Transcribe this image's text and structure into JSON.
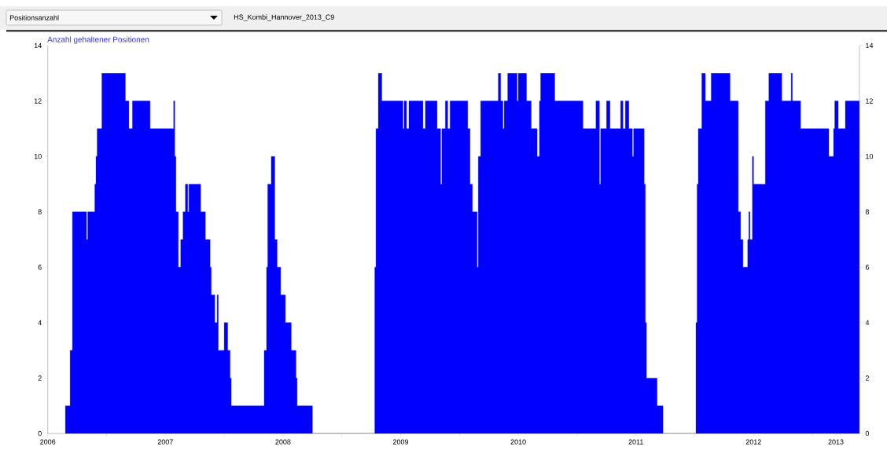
{
  "chart_data": {
    "type": "area",
    "title": "Anzahl gehaltener Positionen",
    "annotations": [
      "Positionsanzahl",
      "HS_Kombi_Hannover_2013_C9"
    ],
    "color": "#0000ff",
    "x": [
      2006.65,
      2006.65,
      2006.69,
      2006.69,
      2006.71,
      2006.71,
      2006.83,
      2006.83,
      2006.84,
      2006.84,
      2006.9,
      2006.9,
      2006.91,
      2006.91,
      2006.92,
      2006.92,
      2006.96,
      2006.96,
      2007.16,
      2007.16,
      2007.19,
      2007.19,
      2007.22,
      2007.22,
      2007.37,
      2007.37,
      2007.57,
      2007.57,
      2007.58,
      2007.58,
      2007.59,
      2007.59,
      2007.61,
      2007.61,
      2007.63,
      2007.63,
      2007.65,
      2007.65,
      2007.67,
      2007.67,
      2007.69,
      2007.69,
      2007.7,
      2007.7,
      2007.8,
      2007.8,
      2007.84,
      2007.84,
      2007.88,
      2007.88,
      2007.89,
      2007.89,
      2007.92,
      2007.92,
      2007.94,
      2007.94,
      2007.95,
      2007.95,
      2008.0,
      2008.0,
      2008.03,
      2008.03,
      2008.05,
      2008.05,
      2008.06,
      2008.06,
      2008.34,
      2008.34,
      2008.36,
      2008.36,
      2008.37,
      2008.37,
      2008.4,
      2008.4,
      2008.43,
      2008.43,
      2008.45,
      2008.45,
      2008.48,
      2008.48,
      2008.52,
      2008.52,
      2008.57,
      2008.57,
      2008.61,
      2008.61,
      2008.62,
      2008.62,
      2008.75,
      2008.75,
      2009.28,
      2009.28,
      2009.29,
      2009.29,
      2009.31,
      2009.31,
      2009.34,
      2009.34,
      2009.52,
      2009.52,
      2009.53,
      2009.53,
      2009.55,
      2009.55,
      2009.57,
      2009.57,
      2009.69,
      2009.69,
      2009.71,
      2009.71,
      2009.81,
      2009.81,
      2009.84,
      2009.84,
      2009.85,
      2009.85,
      2009.88,
      2009.88,
      2009.9,
      2009.9,
      2009.92,
      2009.92,
      2010.07,
      2010.07,
      2010.09,
      2010.09,
      2010.11,
      2010.11,
      2010.15,
      2010.15,
      2010.16,
      2010.16,
      2010.18,
      2010.18,
      2010.33,
      2010.33,
      2010.35,
      2010.35,
      2010.37,
      2010.37,
      2010.38,
      2010.38,
      2010.41,
      2010.41,
      2010.49,
      2010.49,
      2010.5,
      2010.5,
      2010.57,
      2010.57,
      2010.61,
      2010.61,
      2010.66,
      2010.66,
      2010.68,
      2010.68,
      2010.69,
      2010.69,
      2010.81,
      2010.81,
      2011.05,
      2011.05,
      2011.16,
      2011.16,
      2011.19,
      2011.19,
      2011.2,
      2011.2,
      2011.25,
      2011.25,
      2011.28,
      2011.28,
      2011.37,
      2011.37,
      2011.39,
      2011.39,
      2011.41,
      2011.41,
      2011.44,
      2011.44,
      2011.47,
      2011.47,
      2011.48,
      2011.48,
      2011.57,
      2011.57,
      2011.58,
      2011.58,
      2011.59,
      2011.59,
      2011.68,
      2011.68,
      2011.73,
      2011.73,
      2012.01,
      2012.01,
      2012.02,
      2012.02,
      2012.03,
      2012.03,
      2012.06,
      2012.06,
      2012.09,
      2012.09,
      2012.14,
      2012.14,
      2012.3,
      2012.3,
      2012.37,
      2012.37,
      2012.39,
      2012.39,
      2012.41,
      2012.41,
      2012.45,
      2012.45,
      2012.46,
      2012.46,
      2012.47,
      2012.47,
      2012.49,
      2012.49,
      2012.5,
      2012.5,
      2012.6,
      2012.6,
      2012.63,
      2012.63,
      2012.74,
      2012.74,
      2012.82,
      2012.82,
      2012.83,
      2012.83,
      2012.9,
      2012.9,
      2013.14,
      2013.14,
      2013.18,
      2013.18,
      2013.19,
      2013.19,
      2013.22,
      2013.22,
      2013.28,
      2013.28,
      2013.4
    ],
    "values": [
      0,
      1,
      1,
      3,
      3,
      8,
      8,
      7,
      7,
      8,
      8,
      9,
      9,
      10,
      10,
      11,
      11,
      13,
      13,
      12,
      12,
      11,
      11,
      12,
      12,
      11,
      11,
      12,
      12,
      10,
      10,
      8,
      8,
      6,
      6,
      7,
      7,
      8,
      8,
      9,
      9,
      8,
      8,
      9,
      9,
      8,
      8,
      7,
      7,
      6,
      6,
      5,
      5,
      4,
      4,
      5,
      5,
      3,
      3,
      4,
      4,
      3,
      3,
      2,
      2,
      1,
      1,
      3,
      3,
      6,
      6,
      9,
      9,
      10,
      10,
      7,
      7,
      6,
      6,
      5,
      5,
      4,
      4,
      3,
      3,
      2,
      2,
      1,
      1,
      0,
      0,
      6,
      6,
      11,
      11,
      13,
      13,
      12,
      12,
      11,
      11,
      12,
      12,
      11,
      11,
      12,
      12,
      11,
      11,
      12,
      12,
      11,
      11,
      9,
      9,
      11,
      11,
      12,
      12,
      11,
      11,
      12,
      12,
      11,
      11,
      9,
      9,
      8,
      8,
      6,
      6,
      10,
      10,
      12,
      12,
      13,
      13,
      12,
      12,
      11,
      11,
      12,
      12,
      13,
      13,
      12,
      12,
      13,
      13,
      12,
      12,
      11,
      11,
      10,
      10,
      12,
      12,
      13,
      13,
      12,
      12,
      11,
      11,
      12,
      12,
      9,
      9,
      11,
      11,
      12,
      12,
      11,
      11,
      12,
      12,
      11,
      11,
      12,
      12,
      11,
      11,
      10,
      10,
      11,
      11,
      9,
      9,
      4,
      4,
      2,
      2,
      1,
      1,
      0,
      0,
      4,
      4,
      9,
      9,
      11,
      11,
      13,
      13,
      12,
      12,
      13,
      13,
      12,
      12,
      8,
      8,
      7,
      7,
      6,
      6,
      7,
      7,
      8,
      8,
      7,
      7,
      10,
      10,
      9,
      9,
      12,
      12,
      13,
      13,
      12,
      12,
      13,
      13,
      12,
      12,
      11,
      11,
      10,
      10,
      11,
      11,
      12,
      12,
      11,
      11,
      12,
      12
    ],
    "xlim": [
      2006.5,
      2013.4
    ],
    "xticks": [
      {
        "value": 2006.5,
        "label": "2006"
      },
      {
        "value": 2007,
        "label": null
      },
      {
        "value": 2007.5,
        "label": "2007"
      },
      {
        "value": 2008,
        "label": null
      },
      {
        "value": 2008.5,
        "label": "2008"
      },
      {
        "value": 2009,
        "label": null
      },
      {
        "value": 2009.5,
        "label": "2009"
      },
      {
        "value": 2010,
        "label": null
      },
      {
        "value": 2010.5,
        "label": "2010"
      },
      {
        "value": 2011,
        "label": null
      },
      {
        "value": 2011.5,
        "label": "2011"
      },
      {
        "value": 2012,
        "label": null
      },
      {
        "value": 2012.5,
        "label": "2012"
      },
      {
        "value": 2013,
        "label": null
      },
      {
        "value": 2013.2,
        "label": "2013"
      }
    ],
    "ylim": [
      0,
      14
    ],
    "yticks": [
      0,
      2,
      4,
      6,
      8,
      10,
      12,
      14
    ],
    "y2lim": [
      0,
      14
    ],
    "y2ticks": [
      0,
      2,
      4,
      6,
      8,
      10,
      12,
      14
    ]
  }
}
